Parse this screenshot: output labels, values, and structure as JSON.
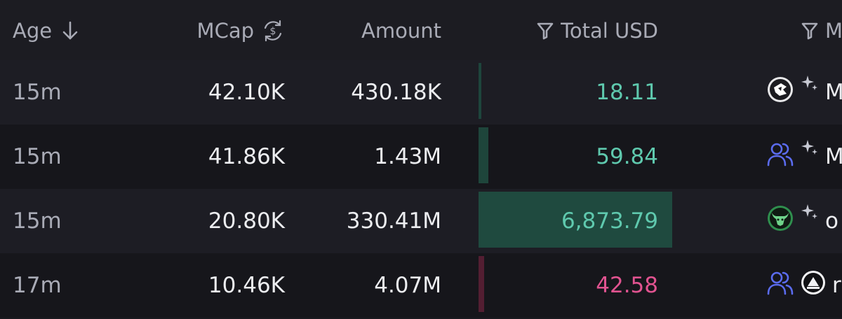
{
  "columns": {
    "age": "Age",
    "mcap": "MCap",
    "amount": "Amount",
    "total_usd": "Total USD",
    "maker": "M"
  },
  "colors": {
    "buy": "#5fc9ae",
    "sell": "#e15390",
    "buy_bar": "#1f4a3f",
    "sell_bar": "#5a1f35"
  },
  "rows": [
    {
      "age": "15m",
      "mcap": "42.10K",
      "amount": "430.18K",
      "total_usd": "18.11",
      "side": "buy",
      "bar_level": 0.01,
      "maker_icon": "gamepad-avatar-icon",
      "sparkle": true,
      "maker_label": "M"
    },
    {
      "age": "15m",
      "mcap": "41.86K",
      "amount": "1.43M",
      "total_usd": "59.84",
      "side": "buy",
      "bar_level": 0.05,
      "maker_icon": "users-icon",
      "sparkle": true,
      "maker_label": "M"
    },
    {
      "age": "15m",
      "mcap": "20.80K",
      "amount": "330.41M",
      "total_usd": "6,873.79",
      "side": "buy",
      "bar_level": 1.0,
      "maker_icon": "bull-avatar-icon",
      "sparkle": true,
      "maker_label": "o"
    },
    {
      "age": "17m",
      "mcap": "10.46K",
      "amount": "4.07M",
      "total_usd": "42.58",
      "side": "sell",
      "bar_level": 0.03,
      "maker_icon": "users-icon",
      "extra_icon": "triangle-avatar-icon",
      "sparkle": false,
      "maker_label": "r"
    }
  ]
}
